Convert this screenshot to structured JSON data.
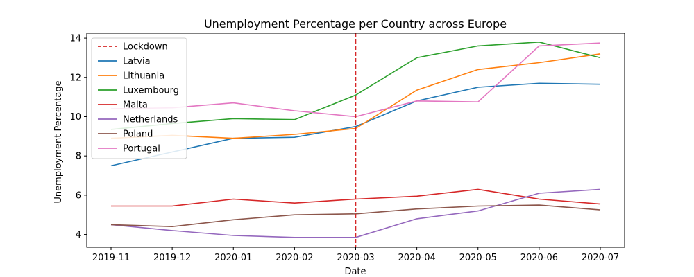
{
  "chart_data": {
    "type": "line",
    "title": "Unemployment Percentage per Country across Europe",
    "xlabel": "Date",
    "ylabel": "Unemployment Percentage",
    "categories": [
      "2019-11",
      "2019-12",
      "2020-01",
      "2020-02",
      "2020-03",
      "2020-04",
      "2020-05",
      "2020-06",
      "2020-07"
    ],
    "ylim": [
      3.35,
      14.25
    ],
    "yticks": [
      4,
      6,
      8,
      10,
      12,
      14
    ],
    "grid": false,
    "legend_position": "upper-left",
    "vline": {
      "label": "Lockdown",
      "x": "2020-03",
      "color": "#d62728",
      "style": "dashed"
    },
    "series": [
      {
        "name": "Latvia",
        "color": "#1f77b4",
        "values": [
          7.5,
          8.2,
          8.9,
          8.95,
          9.5,
          10.8,
          11.5,
          11.7,
          11.65
        ]
      },
      {
        "name": "Lithuania",
        "color": "#ff7f0e",
        "values": [
          8.9,
          9.05,
          8.9,
          9.1,
          9.4,
          11.35,
          12.4,
          12.75,
          13.2
        ]
      },
      {
        "name": "Luxembourg",
        "color": "#2ca02c",
        "values": [
          9.35,
          9.65,
          9.9,
          9.85,
          11.1,
          13.0,
          13.6,
          13.8,
          13.0
        ]
      },
      {
        "name": "Malta",
        "color": "#d62728",
        "values": [
          5.45,
          5.45,
          5.8,
          5.6,
          5.8,
          5.95,
          6.3,
          5.8,
          5.55
        ]
      },
      {
        "name": "Netherlands",
        "color": "#9467bd",
        "values": [
          4.5,
          4.2,
          3.95,
          3.85,
          3.85,
          4.8,
          5.2,
          6.1,
          6.3
        ]
      },
      {
        "name": "Poland",
        "color": "#8c564b",
        "values": [
          4.5,
          4.4,
          4.75,
          5.0,
          5.05,
          5.3,
          5.45,
          5.5,
          5.25
        ]
      },
      {
        "name": "Portugal",
        "color": "#e377c2",
        "values": [
          10.4,
          10.45,
          10.7,
          10.3,
          10.0,
          10.8,
          10.75,
          13.6,
          13.75
        ]
      }
    ]
  }
}
